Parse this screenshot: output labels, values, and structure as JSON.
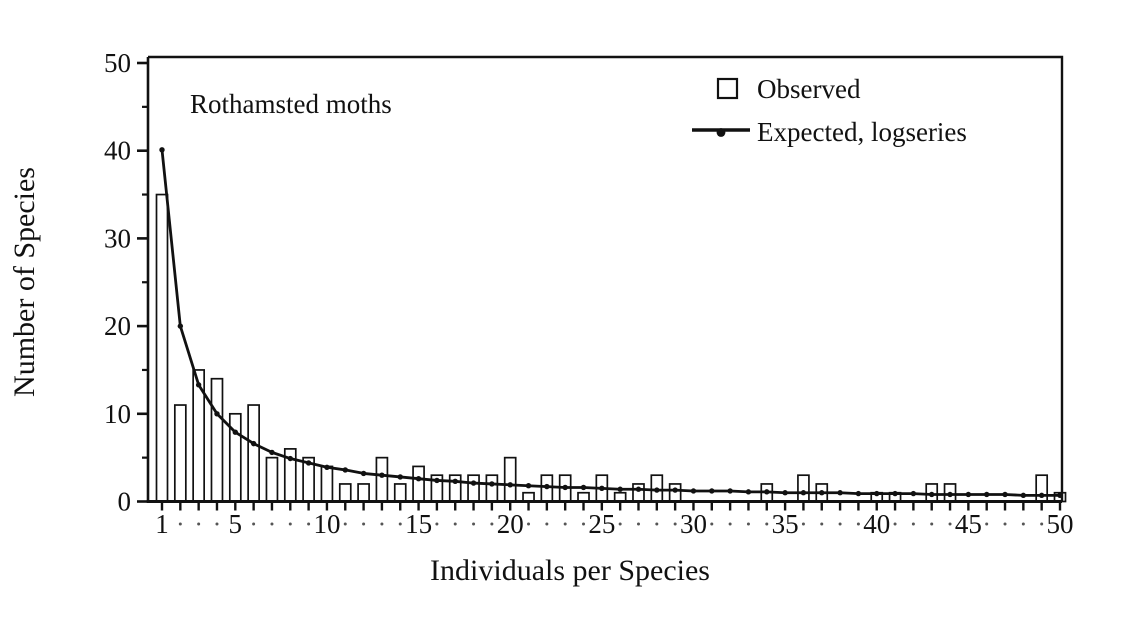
{
  "figure": {
    "annotation": "Rothamsted moths",
    "x_axis_label": "Individuals per Species",
    "y_axis_label": "Number of Species",
    "legend": [
      {
        "label": "Observed",
        "marker": "open-square"
      },
      {
        "label": "Expected, logseries",
        "marker": "line-dot"
      }
    ],
    "colors": {
      "stroke": "#111111",
      "background": "#ffffff",
      "bar_fill": "#ffffff",
      "axis_dot": "#555555"
    }
  },
  "chart_data": {
    "type": "bar",
    "title": "Rothamsted moths",
    "xlabel": "Individuals per Species",
    "ylabel": "Number of Species",
    "x": [
      1,
      2,
      3,
      4,
      5,
      6,
      7,
      8,
      9,
      10,
      11,
      12,
      13,
      14,
      15,
      16,
      17,
      18,
      19,
      20,
      21,
      22,
      23,
      24,
      25,
      26,
      27,
      28,
      29,
      30,
      31,
      32,
      33,
      34,
      35,
      36,
      37,
      38,
      39,
      40,
      41,
      42,
      43,
      44,
      45,
      46,
      47,
      48,
      49,
      50
    ],
    "series": [
      {
        "name": "Observed",
        "type": "bar",
        "values": [
          35,
          11,
          15,
          14,
          10,
          11,
          5,
          6,
          5,
          4,
          2,
          2,
          5,
          2,
          4,
          3,
          3,
          3,
          3,
          5,
          1,
          3,
          3,
          1,
          3,
          1,
          2,
          3,
          2,
          0,
          0,
          0,
          0,
          2,
          0,
          3,
          2,
          0,
          0,
          1,
          1,
          0,
          2,
          2,
          0,
          0,
          0,
          0,
          3,
          1
        ]
      },
      {
        "name": "Expected, logseries",
        "type": "line",
        "values": [
          40.1,
          20.0,
          13.3,
          10.0,
          7.9,
          6.6,
          5.6,
          4.9,
          4.4,
          3.9,
          3.6,
          3.2,
          3.0,
          2.8,
          2.6,
          2.4,
          2.3,
          2.1,
          2.0,
          1.9,
          1.8,
          1.7,
          1.6,
          1.6,
          1.5,
          1.4,
          1.4,
          1.3,
          1.3,
          1.2,
          1.2,
          1.2,
          1.1,
          1.1,
          1.0,
          1.0,
          1.0,
          1.0,
          0.9,
          0.9,
          0.9,
          0.9,
          0.8,
          0.8,
          0.8,
          0.8,
          0.8,
          0.7,
          0.7,
          0.7
        ]
      }
    ],
    "x_tick_labels": [
      1,
      5,
      10,
      15,
      20,
      25,
      30,
      35,
      40,
      45,
      50
    ],
    "y_tick_labels": [
      0,
      10,
      20,
      30,
      40,
      50
    ],
    "y_minor_ticks": [
      5,
      15,
      25,
      35,
      45
    ],
    "xlim": [
      0.2,
      50.2
    ],
    "ylim": [
      0,
      50.7
    ],
    "grid": false,
    "legend_position": "top-right-inside"
  }
}
